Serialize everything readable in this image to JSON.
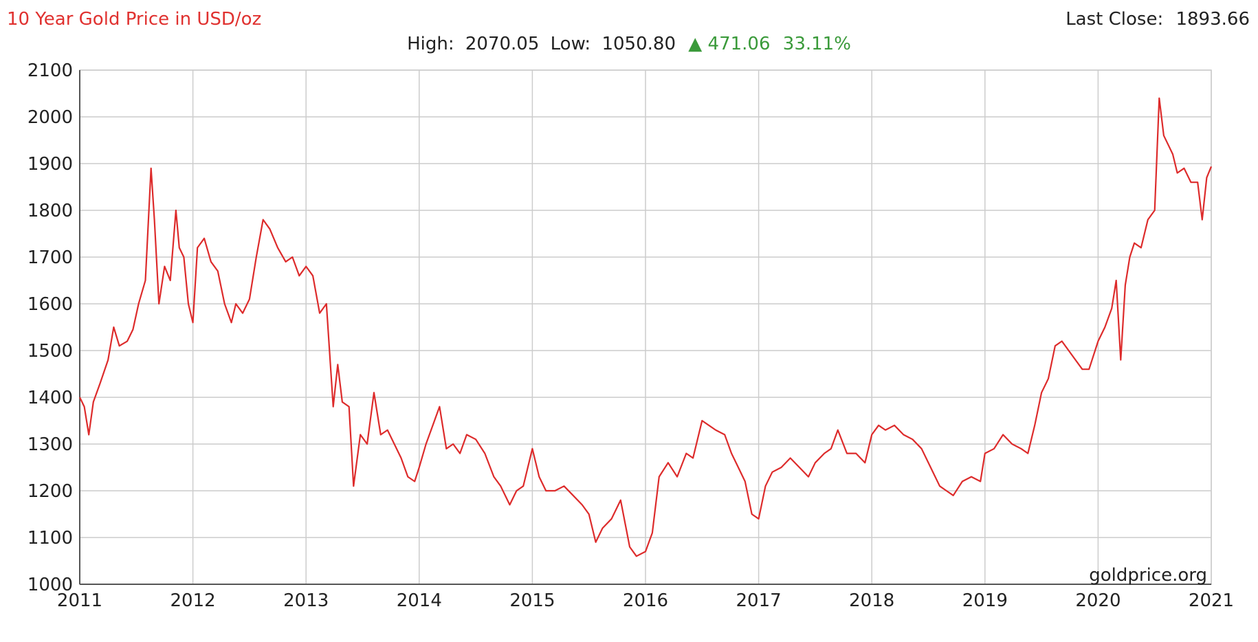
{
  "header": {
    "title": "10 Year Gold Price in USD/oz",
    "last_close_label": "Last Close:",
    "last_close_value": "1893.66",
    "high_label": "High:",
    "high_value": "2070.05",
    "low_label": "Low:",
    "low_value": "1050.80",
    "change_arrow": "▲",
    "change_value": "471.06",
    "change_percent": "33.11%"
  },
  "watermark": "goldprice.org",
  "colors": {
    "title": "#e0312f",
    "line": "#dd2b2b",
    "grid": "#cccccc",
    "axis": "#555555",
    "text": "#222222",
    "positive_change": "#3a9a3a"
  },
  "chart_data": {
    "type": "line",
    "title": "10 Year Gold Price in USD/oz",
    "xlabel": "",
    "ylabel": "",
    "xlim": [
      2011,
      2021
    ],
    "ylim": [
      1000,
      2100
    ],
    "x_ticks": [
      "2011",
      "2012",
      "2013",
      "2014",
      "2015",
      "2016",
      "2017",
      "2018",
      "2019",
      "2020",
      "2021"
    ],
    "y_ticks": [
      1000,
      1100,
      1200,
      1300,
      1400,
      1500,
      1600,
      1700,
      1800,
      1900,
      2000,
      2100
    ],
    "grid": true,
    "series": [
      {
        "values_note": "",
        "x": [
          2011.0,
          2011.04,
          2011.08,
          2011.12,
          2011.18,
          2011.25,
          2011.3,
          2011.35,
          2011.42,
          2011.47,
          2011.52,
          2011.58,
          2011.63,
          2011.66,
          2011.7,
          2011.75,
          2011.8,
          2011.85,
          2011.88,
          2011.92,
          2011.96,
          2012.0,
          2012.04,
          2012.1,
          2012.16,
          2012.22,
          2012.28,
          2012.34,
          2012.38,
          2012.44,
          2012.5,
          2012.56,
          2012.62,
          2012.68,
          2012.75,
          2012.82,
          2012.88,
          2012.94,
          2013.0,
          2013.06,
          2013.12,
          2013.18,
          2013.24,
          2013.28,
          2013.32,
          2013.38,
          2013.42,
          2013.48,
          2013.54,
          2013.6,
          2013.66,
          2013.72,
          2013.78,
          2013.84,
          2013.9,
          2013.96,
          2014.0,
          2014.06,
          2014.12,
          2014.18,
          2014.24,
          2014.3,
          2014.36,
          2014.42,
          2014.5,
          2014.58,
          2014.66,
          2014.72,
          2014.8,
          2014.86,
          2014.92,
          2015.0,
          2015.06,
          2015.12,
          2015.2,
          2015.28,
          2015.36,
          2015.44,
          2015.5,
          2015.56,
          2015.62,
          2015.7,
          2015.78,
          2015.86,
          2015.92,
          2016.0,
          2016.06,
          2016.12,
          2016.2,
          2016.28,
          2016.36,
          2016.42,
          2016.5,
          2016.56,
          2016.62,
          2016.7,
          2016.76,
          2016.82,
          2016.88,
          2016.94,
          2017.0,
          2017.06,
          2017.12,
          2017.2,
          2017.28,
          2017.36,
          2017.44,
          2017.5,
          2017.58,
          2017.64,
          2017.7,
          2017.78,
          2017.86,
          2017.94,
          2018.0,
          2018.06,
          2018.12,
          2018.2,
          2018.28,
          2018.36,
          2018.44,
          2018.52,
          2018.6,
          2018.66,
          2018.72,
          2018.8,
          2018.88,
          2018.96,
          2019.0,
          2019.08,
          2019.16,
          2019.24,
          2019.32,
          2019.38,
          2019.44,
          2019.5,
          2019.56,
          2019.62,
          2019.68,
          2019.74,
          2019.8,
          2019.86,
          2019.92,
          2020.0,
          2020.06,
          2020.12,
          2020.16,
          2020.2,
          2020.24,
          2020.28,
          2020.32,
          2020.38,
          2020.44,
          2020.5,
          2020.54,
          2020.58,
          2020.62,
          2020.66,
          2020.7,
          2020.76,
          2020.82,
          2020.88,
          2020.92,
          2020.96,
          2021.0
        ],
        "values": [
          1400,
          1380,
          1320,
          1390,
          1430,
          1480,
          1550,
          1510,
          1520,
          1545,
          1600,
          1650,
          1890,
          1780,
          1600,
          1680,
          1650,
          1800,
          1720,
          1700,
          1600,
          1560,
          1720,
          1740,
          1690,
          1670,
          1600,
          1560,
          1600,
          1580,
          1610,
          1700,
          1780,
          1760,
          1720,
          1690,
          1700,
          1660,
          1680,
          1660,
          1580,
          1600,
          1380,
          1470,
          1390,
          1380,
          1210,
          1320,
          1300,
          1410,
          1320,
          1330,
          1300,
          1270,
          1230,
          1220,
          1250,
          1300,
          1340,
          1380,
          1290,
          1300,
          1280,
          1320,
          1310,
          1280,
          1230,
          1210,
          1170,
          1200,
          1210,
          1290,
          1230,
          1200,
          1200,
          1210,
          1190,
          1170,
          1150,
          1090,
          1120,
          1140,
          1180,
          1080,
          1060,
          1070,
          1110,
          1230,
          1260,
          1230,
          1280,
          1270,
          1350,
          1340,
          1330,
          1320,
          1280,
          1250,
          1220,
          1150,
          1140,
          1210,
          1240,
          1250,
          1270,
          1250,
          1230,
          1260,
          1280,
          1290,
          1330,
          1280,
          1280,
          1260,
          1320,
          1340,
          1330,
          1340,
          1320,
          1310,
          1290,
          1250,
          1210,
          1200,
          1190,
          1220,
          1230,
          1220,
          1280,
          1290,
          1320,
          1300,
          1290,
          1280,
          1340,
          1410,
          1440,
          1510,
          1520,
          1500,
          1480,
          1460,
          1460,
          1520,
          1550,
          1590,
          1650,
          1480,
          1640,
          1700,
          1730,
          1720,
          1780,
          1800,
          2040,
          1960,
          1940,
          1920,
          1880,
          1890,
          1860,
          1860,
          1780,
          1870,
          1893.66
        ]
      }
    ],
    "annotations": [
      "goldprice.org"
    ]
  }
}
